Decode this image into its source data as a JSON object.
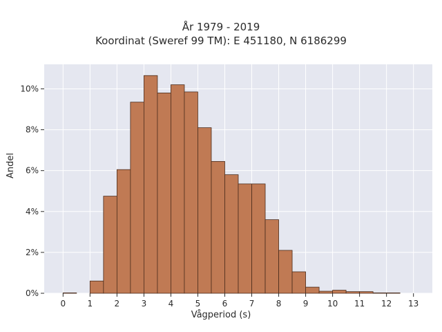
{
  "chart_data": {
    "type": "bar",
    "title_lines": [
      "År 1979 - 2019",
      "Koordinat (Sweref 99 TM): E 451180, N 6186299"
    ],
    "xlabel": "Vågperiod (s)",
    "ylabel": "Andel",
    "bin_width": 0.5,
    "bin_starts": [
      0.0,
      0.5,
      1.0,
      1.5,
      2.0,
      2.5,
      3.0,
      3.5,
      4.0,
      4.5,
      5.0,
      5.5,
      6.0,
      6.5,
      7.0,
      7.5,
      8.0,
      8.5,
      9.0,
      9.5,
      10.0,
      10.5,
      11.0,
      11.5,
      12.0,
      12.5
    ],
    "values": [
      0.02,
      0.0,
      0.6,
      4.75,
      6.05,
      9.35,
      10.65,
      9.8,
      10.2,
      9.85,
      8.1,
      6.45,
      5.8,
      5.35,
      5.35,
      3.6,
      2.1,
      1.05,
      0.3,
      0.1,
      0.15,
      0.08,
      0.08,
      0.02,
      0.02,
      0.0
    ],
    "xticks": [
      0,
      1,
      2,
      3,
      4,
      5,
      6,
      7,
      8,
      9,
      10,
      11,
      12,
      13
    ],
    "yticks": [
      0,
      2,
      4,
      6,
      8,
      10
    ],
    "ytick_suffix": "%",
    "xlim": [
      -0.7,
      13.7
    ],
    "ylim": [
      0,
      11.2
    ],
    "grid": true,
    "colors": {
      "bar_fill": "#c07a54",
      "bar_edge": "#4a2c1c",
      "plot_bg": "#e5e7f0",
      "grid": "#ffffff",
      "text": "#2a2a2a"
    }
  }
}
